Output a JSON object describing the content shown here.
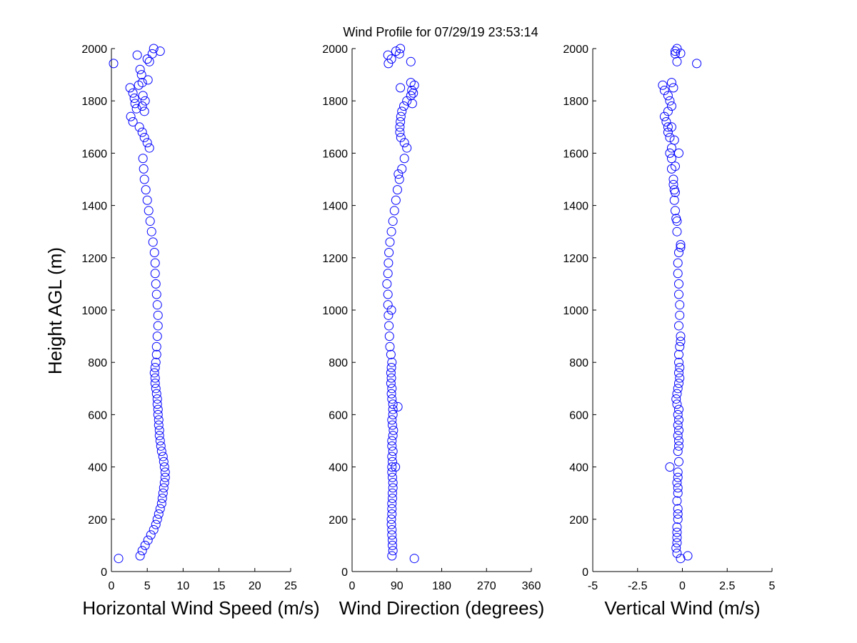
{
  "figure": {
    "title": "Wind Profile for  07/29/19 23:53:14",
    "ylabel": "Height AGL (m)",
    "marker_color": "#0000ff"
  },
  "chart_data": [
    {
      "type": "scatter",
      "xlabel": "Horizontal Wind Speed (m/s)",
      "ylabel": "Height AGL (m)",
      "xlim": [
        0,
        25
      ],
      "ylim": [
        0,
        2000
      ],
      "xticks": [
        0,
        5,
        10,
        15,
        20,
        25
      ],
      "xtick_labels": [
        "0",
        "5",
        "10",
        "15",
        "20",
        "25"
      ],
      "yticks": [
        0,
        200,
        400,
        600,
        800,
        1000,
        1200,
        1400,
        1600,
        1800,
        2000
      ],
      "ytick_labels": [
        "0",
        "200",
        "400",
        "600",
        "800",
        "1000",
        "1200",
        "1400",
        "1600",
        "1800",
        "2000"
      ],
      "grid": false,
      "marker": "open-circle",
      "series": [
        {
          "x": [
            1.0,
            4.0,
            4.3,
            4.7,
            5.1,
            5.5,
            5.9,
            6.2,
            6.4,
            6.6,
            6.8,
            7.0,
            7.1,
            7.2,
            7.3,
            7.4,
            7.5,
            7.5,
            7.4,
            7.3,
            7.2,
            7.0,
            6.9,
            6.8,
            6.7,
            6.7,
            6.6,
            6.6,
            6.5,
            6.5,
            6.4,
            6.4,
            6.3,
            6.2,
            6.1,
            6.1,
            6.0,
            6.1,
            6.2,
            6.3,
            6.3,
            6.4,
            6.5,
            6.5,
            6.4,
            6.3,
            6.2,
            6.1,
            6.1,
            6.0,
            5.8,
            5.6,
            5.4,
            5.2,
            5.0,
            4.8,
            4.6,
            4.5,
            4.4,
            5.3,
            5.0,
            4.6,
            4.3,
            3.9,
            3.0,
            2.7,
            4.6,
            4.3,
            4.7,
            4.4,
            3.5,
            3.3,
            3.2,
            3.0,
            2.6,
            3.8,
            4.3,
            5.1,
            4.2,
            4.0,
            5.3,
            0.3,
            5.0,
            3.6,
            5.7,
            6.8,
            5.9
          ],
          "y": [
            50,
            60,
            80,
            100,
            120,
            140,
            160,
            180,
            200,
            220,
            240,
            260,
            280,
            300,
            320,
            340,
            360,
            380,
            400,
            420,
            440,
            460,
            480,
            500,
            520,
            540,
            560,
            580,
            600,
            620,
            640,
            660,
            680,
            700,
            720,
            740,
            760,
            780,
            800,
            830,
            860,
            900,
            940,
            980,
            1020,
            1060,
            1100,
            1140,
            1180,
            1220,
            1260,
            1300,
            1340,
            1380,
            1420,
            1460,
            1500,
            1540,
            1580,
            1620,
            1640,
            1660,
            1680,
            1700,
            1720,
            1740,
            1760,
            1780,
            1800,
            1820,
            1770,
            1790,
            1810,
            1830,
            1850,
            1860,
            1870,
            1880,
            1900,
            1920,
            1950,
            1943,
            1960,
            1975,
            1980,
            1990,
            2000
          ]
        }
      ]
    },
    {
      "type": "scatter",
      "xlabel": "Wind Direction (degrees)",
      "ylabel": "",
      "xlim": [
        0,
        360
      ],
      "ylim": [
        0,
        2000
      ],
      "xticks": [
        0,
        90,
        180,
        270,
        360
      ],
      "xtick_labels": [
        "0",
        "90",
        "180",
        "270",
        "360"
      ],
      "yticks": [
        0,
        200,
        400,
        600,
        800,
        1000,
        1200,
        1400,
        1600,
        1800,
        2000
      ],
      "ytick_labels": [
        "0",
        "200",
        "400",
        "600",
        "800",
        "1000",
        "1200",
        "1400",
        "1600",
        "1800",
        "2000"
      ],
      "grid": false,
      "marker": "open-circle",
      "series": [
        {
          "x": [
            125,
            80,
            82,
            81,
            81,
            80,
            80,
            79,
            79,
            80,
            80,
            80,
            81,
            81,
            82,
            82,
            81,
            80,
            80,
            81,
            80,
            82,
            80,
            80,
            82,
            83,
            81,
            80,
            82,
            82,
            82,
            80,
            79,
            80,
            78,
            79,
            78,
            79,
            80,
            78,
            76,
            75,
            74,
            73,
            72,
            72,
            70,
            72,
            73,
            74,
            76,
            79,
            82,
            85,
            88,
            91,
            95,
            100,
            105,
            110,
            105,
            98,
            96,
            96,
            97,
            98,
            100,
            104,
            110,
            118,
            123,
            120,
            97,
            125,
            118,
            73,
            79,
            118,
            72,
            95,
            88,
            97,
            79,
            121,
            87,
            92,
            93
          ],
          "y": [
            50,
            60,
            80,
            100,
            120,
            140,
            160,
            180,
            200,
            220,
            240,
            260,
            280,
            300,
            320,
            340,
            360,
            380,
            400,
            420,
            440,
            460,
            480,
            500,
            520,
            540,
            560,
            580,
            600,
            620,
            640,
            660,
            680,
            700,
            720,
            740,
            760,
            780,
            800,
            830,
            860,
            900,
            940,
            980,
            1020,
            1060,
            1100,
            1140,
            1180,
            1220,
            1260,
            1300,
            1340,
            1380,
            1420,
            1460,
            1500,
            1540,
            1580,
            1620,
            1640,
            1660,
            1680,
            1700,
            1720,
            1740,
            1760,
            1780,
            1800,
            1820,
            1830,
            1840,
            1850,
            1860,
            1870,
            1943,
            1960,
            1950,
            1975,
            1980,
            1990,
            2000,
            1000,
            1790,
            400,
            630,
            1520
          ]
        }
      ]
    },
    {
      "type": "scatter",
      "xlabel": "Vertical Wind (m/s)",
      "ylabel": "",
      "xlim": [
        -5,
        5
      ],
      "ylim": [
        0,
        2000
      ],
      "xticks": [
        -5,
        -2.5,
        0,
        2.5,
        5
      ],
      "xtick_labels": [
        "-5",
        "-2.5",
        "0",
        "2.5",
        "5"
      ],
      "yticks": [
        0,
        200,
        400,
        600,
        800,
        1000,
        1200,
        1400,
        1600,
        1800,
        2000
      ],
      "ytick_labels": [
        "0",
        "200",
        "400",
        "600",
        "800",
        "1000",
        "1200",
        "1400",
        "1600",
        "1800",
        "2000"
      ],
      "grid": false,
      "marker": "open-circle",
      "series": [
        {
          "x": [
            -0.1,
            0.3,
            -0.3,
            -0.35,
            -0.3,
            -0.3,
            -0.3,
            -0.3,
            -0.25,
            -0.25,
            -0.25,
            -0.3,
            -0.25,
            -0.25,
            -0.3,
            -0.25,
            -0.25,
            -0.2,
            -0.7,
            -0.25,
            -0.2,
            -0.2,
            -0.25,
            -0.2,
            -0.25,
            -0.2,
            -0.25,
            -0.2,
            -0.3,
            -0.35,
            -0.3,
            -0.25,
            -0.2,
            -0.15,
            -0.2,
            -0.15,
            -0.2,
            -0.2,
            -0.15,
            -0.1,
            -0.1,
            -0.2,
            -0.15,
            -0.15,
            -0.2,
            -0.2,
            -0.25,
            -0.25,
            -0.2,
            -0.1,
            -0.1,
            -0.3,
            -0.3,
            -0.4,
            -0.45,
            -0.45,
            -0.5,
            -0.6,
            -0.6,
            -0.6,
            -0.7,
            -0.8,
            -0.6,
            -0.9,
            -1.0,
            -0.8,
            -0.6,
            -0.7,
            -0.8,
            -1.0,
            -0.5,
            -1.1,
            -0.6,
            0.8,
            -0.3,
            -0.4,
            -0.4,
            -0.1,
            -0.3,
            -0.8,
            -0.7,
            -0.4,
            -0.4,
            -0.35,
            -0.5,
            -0.2,
            -0.45
          ],
          "y": [
            50,
            60,
            70,
            90,
            110,
            130,
            150,
            170,
            200,
            220,
            240,
            270,
            300,
            320,
            340,
            360,
            380,
            420,
            400,
            460,
            480,
            500,
            520,
            540,
            560,
            580,
            600,
            620,
            640,
            660,
            680,
            700,
            720,
            740,
            760,
            780,
            800,
            830,
            860,
            880,
            900,
            940,
            980,
            1020,
            1060,
            1100,
            1140,
            1180,
            1220,
            1240,
            1250,
            1300,
            1340,
            1380,
            1420,
            1460,
            1500,
            1540,
            1580,
            1620,
            1660,
            1680,
            1700,
            1720,
            1740,
            1760,
            1780,
            1800,
            1820,
            1840,
            1850,
            1860,
            1870,
            1943,
            1950,
            1980,
            1990,
            1982,
            2000,
            1700,
            1600,
            1550,
            1450,
            1350,
            1480,
            1600,
            1650
          ]
        }
      ]
    }
  ]
}
